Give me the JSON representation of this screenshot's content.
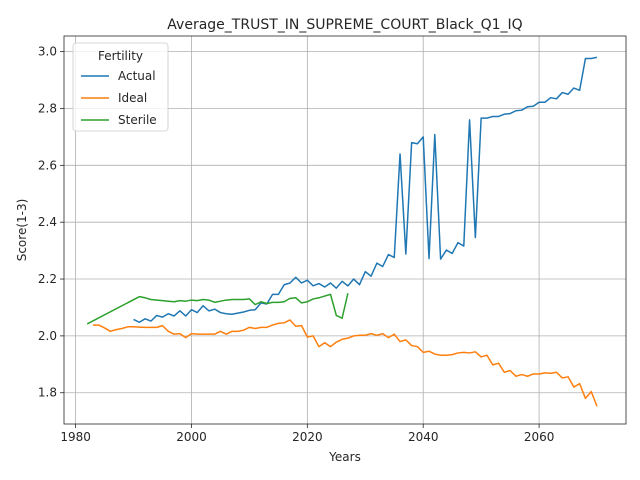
{
  "chart_data": {
    "type": "line",
    "title": "Average_TRUST_IN_SUPREME_COURT_Black_Q1_IQ",
    "xlabel": "Years",
    "ylabel": "Score(1-3)",
    "xlim": [
      1978,
      2075
    ],
    "ylim": [
      1.69,
      3.055
    ],
    "xticks": [
      1980,
      2000,
      2020,
      2040,
      2060
    ],
    "yticks": [
      1.8,
      2.0,
      2.2,
      2.4,
      2.6,
      2.8,
      3.0
    ],
    "ytick_labels": [
      "1.8",
      "2.0",
      "2.2",
      "2.4",
      "2.6",
      "2.8",
      "3.0"
    ],
    "grid": true,
    "legend": {
      "title": "Fertility",
      "placement": "top-left"
    },
    "series": [
      {
        "name": "Actual",
        "color": "#1f77b4",
        "points": [
          [
            1990,
            2.058
          ],
          [
            1991,
            2.048
          ],
          [
            1992,
            2.06
          ],
          [
            1993,
            2.052
          ],
          [
            1994,
            2.072
          ],
          [
            1995,
            2.066
          ],
          [
            1996,
            2.078
          ],
          [
            1997,
            2.07
          ],
          [
            1998,
            2.088
          ],
          [
            1999,
            2.07
          ],
          [
            2000,
            2.092
          ],
          [
            2001,
            2.082
          ],
          [
            2002,
            2.106
          ],
          [
            2003,
            2.088
          ],
          [
            2004,
            2.094
          ],
          [
            2005,
            2.082
          ],
          [
            2006,
            2.078
          ],
          [
            2007,
            2.076
          ],
          [
            2008,
            2.08
          ],
          [
            2009,
            2.084
          ],
          [
            2010,
            2.09
          ],
          [
            2011,
            2.092
          ],
          [
            2012,
            2.116
          ],
          [
            2013,
            2.112
          ],
          [
            2014,
            2.146
          ],
          [
            2015,
            2.146
          ],
          [
            2016,
            2.18
          ],
          [
            2017,
            2.186
          ],
          [
            2018,
            2.206
          ],
          [
            2019,
            2.186
          ],
          [
            2020,
            2.196
          ],
          [
            2021,
            2.176
          ],
          [
            2022,
            2.184
          ],
          [
            2023,
            2.172
          ],
          [
            2024,
            2.186
          ],
          [
            2025,
            2.168
          ],
          [
            2026,
            2.192
          ],
          [
            2027,
            2.176
          ],
          [
            2028,
            2.2
          ],
          [
            2029,
            2.18
          ],
          [
            2030,
            2.226
          ],
          [
            2031,
            2.21
          ],
          [
            2032,
            2.256
          ],
          [
            2033,
            2.244
          ],
          [
            2034,
            2.286
          ],
          [
            2035,
            2.276
          ],
          [
            2036,
            2.64
          ],
          [
            2037,
            2.288
          ],
          [
            2038,
            2.68
          ],
          [
            2039,
            2.676
          ],
          [
            2040,
            2.7
          ],
          [
            2041,
            2.272
          ],
          [
            2042,
            2.708
          ],
          [
            2043,
            2.27
          ],
          [
            2044,
            2.302
          ],
          [
            2045,
            2.29
          ],
          [
            2046,
            2.328
          ],
          [
            2047,
            2.316
          ],
          [
            2048,
            2.76
          ],
          [
            2049,
            2.346
          ],
          [
            2050,
            2.766
          ],
          [
            2051,
            2.766
          ],
          [
            2052,
            2.772
          ],
          [
            2053,
            2.772
          ],
          [
            2054,
            2.78
          ],
          [
            2055,
            2.782
          ],
          [
            2056,
            2.792
          ],
          [
            2057,
            2.794
          ],
          [
            2058,
            2.806
          ],
          [
            2059,
            2.808
          ],
          [
            2060,
            2.822
          ],
          [
            2061,
            2.822
          ],
          [
            2062,
            2.838
          ],
          [
            2063,
            2.834
          ],
          [
            2064,
            2.856
          ],
          [
            2065,
            2.85
          ],
          [
            2066,
            2.872
          ],
          [
            2067,
            2.864
          ],
          [
            2068,
            2.976
          ],
          [
            2069,
            2.976
          ],
          [
            2070,
            2.98
          ]
        ]
      },
      {
        "name": "Ideal",
        "color": "#ff7f0e",
        "points": [
          [
            1983,
            2.038
          ],
          [
            1984,
            2.038
          ],
          [
            1985,
            2.028
          ],
          [
            1986,
            2.016
          ],
          [
            1987,
            2.022
          ],
          [
            1988,
            2.026
          ],
          [
            1989,
            2.032
          ],
          [
            1990,
            2.032
          ],
          [
            1991,
            2.031
          ],
          [
            1992,
            2.03
          ],
          [
            1993,
            2.03
          ],
          [
            1994,
            2.03
          ],
          [
            1995,
            2.036
          ],
          [
            1996,
            2.016
          ],
          [
            1997,
            2.006
          ],
          [
            1998,
            2.008
          ],
          [
            1999,
            1.994
          ],
          [
            2000,
            2.008
          ],
          [
            2001,
            2.006
          ],
          [
            2002,
            2.006
          ],
          [
            2003,
            2.006
          ],
          [
            2004,
            2.006
          ],
          [
            2005,
            2.016
          ],
          [
            2006,
            2.006
          ],
          [
            2007,
            2.016
          ],
          [
            2008,
            2.016
          ],
          [
            2009,
            2.02
          ],
          [
            2010,
            2.03
          ],
          [
            2011,
            2.026
          ],
          [
            2012,
            2.03
          ],
          [
            2013,
            2.03
          ],
          [
            2014,
            2.038
          ],
          [
            2015,
            2.044
          ],
          [
            2016,
            2.046
          ],
          [
            2017,
            2.056
          ],
          [
            2018,
            2.034
          ],
          [
            2019,
            2.036
          ],
          [
            2020,
            1.996
          ],
          [
            2021,
            2.0
          ],
          [
            2022,
            1.962
          ],
          [
            2023,
            1.976
          ],
          [
            2024,
            1.962
          ],
          [
            2025,
            1.978
          ],
          [
            2026,
            1.988
          ],
          [
            2027,
            1.992
          ],
          [
            2028,
            2.0
          ],
          [
            2029,
            2.002
          ],
          [
            2030,
            2.002
          ],
          [
            2031,
            2.008
          ],
          [
            2032,
            2.002
          ],
          [
            2033,
            2.008
          ],
          [
            2034,
            1.994
          ],
          [
            2035,
            2.006
          ],
          [
            2036,
            1.98
          ],
          [
            2037,
            1.986
          ],
          [
            2038,
            1.966
          ],
          [
            2039,
            1.962
          ],
          [
            2040,
            1.942
          ],
          [
            2041,
            1.946
          ],
          [
            2042,
            1.936
          ],
          [
            2043,
            1.932
          ],
          [
            2044,
            1.932
          ],
          [
            2045,
            1.934
          ],
          [
            2046,
            1.94
          ],
          [
            2047,
            1.942
          ],
          [
            2048,
            1.94
          ],
          [
            2049,
            1.944
          ],
          [
            2050,
            1.926
          ],
          [
            2051,
            1.932
          ],
          [
            2052,
            1.898
          ],
          [
            2053,
            1.904
          ],
          [
            2054,
            1.872
          ],
          [
            2055,
            1.878
          ],
          [
            2056,
            1.858
          ],
          [
            2057,
            1.864
          ],
          [
            2058,
            1.858
          ],
          [
            2059,
            1.866
          ],
          [
            2060,
            1.866
          ],
          [
            2061,
            1.87
          ],
          [
            2062,
            1.868
          ],
          [
            2063,
            1.872
          ],
          [
            2064,
            1.852
          ],
          [
            2065,
            1.856
          ],
          [
            2066,
            1.82
          ],
          [
            2067,
            1.832
          ],
          [
            2068,
            1.78
          ],
          [
            2069,
            1.804
          ],
          [
            2070,
            1.752
          ]
        ]
      },
      {
        "name": "Sterile",
        "color": "#2ca02c",
        "points": [
          [
            1982,
            2.042
          ],
          [
            1991,
            2.138
          ],
          [
            1992,
            2.134
          ],
          [
            1993,
            2.128
          ],
          [
            1994,
            2.126
          ],
          [
            1995,
            2.124
          ],
          [
            1996,
            2.122
          ],
          [
            1997,
            2.12
          ],
          [
            1998,
            2.124
          ],
          [
            1999,
            2.122
          ],
          [
            2000,
            2.126
          ],
          [
            2001,
            2.124
          ],
          [
            2002,
            2.128
          ],
          [
            2003,
            2.126
          ],
          [
            2004,
            2.118
          ],
          [
            2005,
            2.122
          ],
          [
            2006,
            2.126
          ],
          [
            2007,
            2.128
          ],
          [
            2008,
            2.128
          ],
          [
            2009,
            2.128
          ],
          [
            2010,
            2.13
          ],
          [
            2011,
            2.11
          ],
          [
            2012,
            2.12
          ],
          [
            2013,
            2.114
          ],
          [
            2014,
            2.118
          ],
          [
            2015,
            2.118
          ],
          [
            2016,
            2.12
          ],
          [
            2017,
            2.132
          ],
          [
            2018,
            2.134
          ],
          [
            2019,
            2.116
          ],
          [
            2020,
            2.12
          ],
          [
            2021,
            2.13
          ],
          [
            2022,
            2.134
          ],
          [
            2023,
            2.14
          ],
          [
            2024,
            2.146
          ],
          [
            2025,
            2.072
          ],
          [
            2026,
            2.062
          ],
          [
            2027,
            2.15
          ]
        ]
      }
    ]
  }
}
